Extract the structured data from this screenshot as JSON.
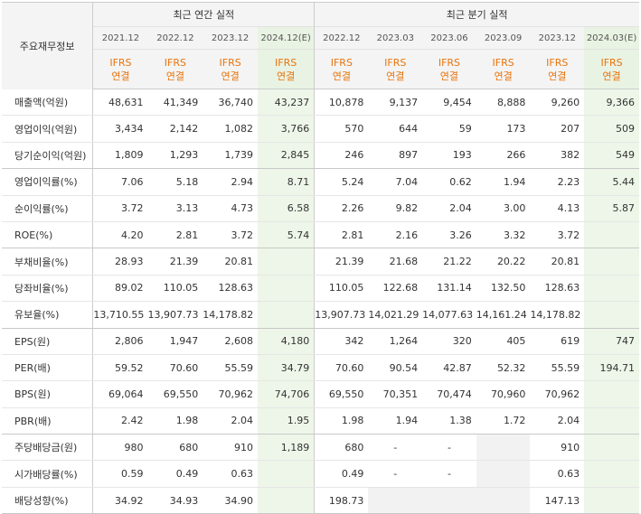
{
  "header": {
    "label": "주요재무정보",
    "annual_title": "최근 연간 실적",
    "quarterly_title": "최근 분기 실적",
    "periods": [
      "2021.12",
      "2022.12",
      "2023.12",
      "2024.12(E)",
      "2022.12",
      "2023.03",
      "2023.06",
      "2023.09",
      "2023.12",
      "2024.03(E)"
    ],
    "ifrs_line1": "IFRS",
    "ifrs_line2": "연결"
  },
  "rows": [
    {
      "label": "매출액(억원)",
      "values": [
        "48,631",
        "41,349",
        "36,740",
        "43,237",
        "10,878",
        "9,137",
        "9,454",
        "8,888",
        "9,260",
        "9,366"
      ]
    },
    {
      "label": "영업이익(억원)",
      "values": [
        "3,434",
        "2,142",
        "1,082",
        "3,766",
        "570",
        "644",
        "59",
        "173",
        "207",
        "509"
      ]
    },
    {
      "label": "당기순이익(억원)",
      "values": [
        "1,809",
        "1,293",
        "1,739",
        "2,845",
        "246",
        "897",
        "193",
        "266",
        "382",
        "549"
      ]
    },
    {
      "label": "영업이익률(%)",
      "values": [
        "7.06",
        "5.18",
        "2.94",
        "8.71",
        "5.24",
        "7.04",
        "0.62",
        "1.94",
        "2.23",
        "5.44"
      ]
    },
    {
      "label": "순이익률(%)",
      "values": [
        "3.72",
        "3.13",
        "4.73",
        "6.58",
        "2.26",
        "9.82",
        "2.04",
        "3.00",
        "4.13",
        "5.87"
      ]
    },
    {
      "label": "ROE(%)",
      "values": [
        "4.20",
        "2.81",
        "3.72",
        "5.74",
        "2.81",
        "2.16",
        "3.26",
        "3.32",
        "3.72",
        ""
      ]
    },
    {
      "label": "부채비율(%)",
      "values": [
        "28.93",
        "21.39",
        "20.81",
        "",
        "21.39",
        "21.68",
        "21.22",
        "20.22",
        "20.81",
        ""
      ]
    },
    {
      "label": "당좌비율(%)",
      "values": [
        "89.02",
        "110.05",
        "128.63",
        "",
        "110.05",
        "122.68",
        "131.14",
        "132.50",
        "128.63",
        ""
      ]
    },
    {
      "label": "유보율(%)",
      "values": [
        "13,710.55",
        "13,907.73",
        "14,178.82",
        "",
        "13,907.73",
        "14,021.29",
        "14,077.63",
        "14,161.24",
        "14,178.82",
        ""
      ]
    },
    {
      "label": "EPS(원)",
      "values": [
        "2,806",
        "1,947",
        "2,608",
        "4,180",
        "342",
        "1,264",
        "320",
        "405",
        "619",
        "747"
      ]
    },
    {
      "label": "PER(배)",
      "values": [
        "59.52",
        "70.60",
        "55.59",
        "34.79",
        "70.60",
        "90.54",
        "42.87",
        "52.32",
        "55.59",
        "194.71"
      ]
    },
    {
      "label": "BPS(원)",
      "values": [
        "69,064",
        "69,550",
        "70,962",
        "74,706",
        "69,550",
        "70,351",
        "70,474",
        "70,960",
        "70,962",
        ""
      ]
    },
    {
      "label": "PBR(배)",
      "values": [
        "2.42",
        "1.98",
        "2.04",
        "1.95",
        "1.98",
        "1.94",
        "1.38",
        "1.72",
        "2.04",
        ""
      ]
    },
    {
      "label": "주당배당금(원)",
      "values": [
        "980",
        "680",
        "910",
        "1,189",
        "680",
        "-",
        "-",
        "",
        "910",
        ""
      ]
    },
    {
      "label": "시가배당률(%)",
      "values": [
        "0.59",
        "0.49",
        "0.63",
        "",
        "0.49",
        "-",
        "-",
        "",
        "0.63",
        ""
      ]
    },
    {
      "label": "배당성향(%)",
      "values": [
        "34.92",
        "34.93",
        "34.90",
        "",
        "198.73",
        "",
        "",
        "",
        "147.13",
        ""
      ]
    }
  ]
}
